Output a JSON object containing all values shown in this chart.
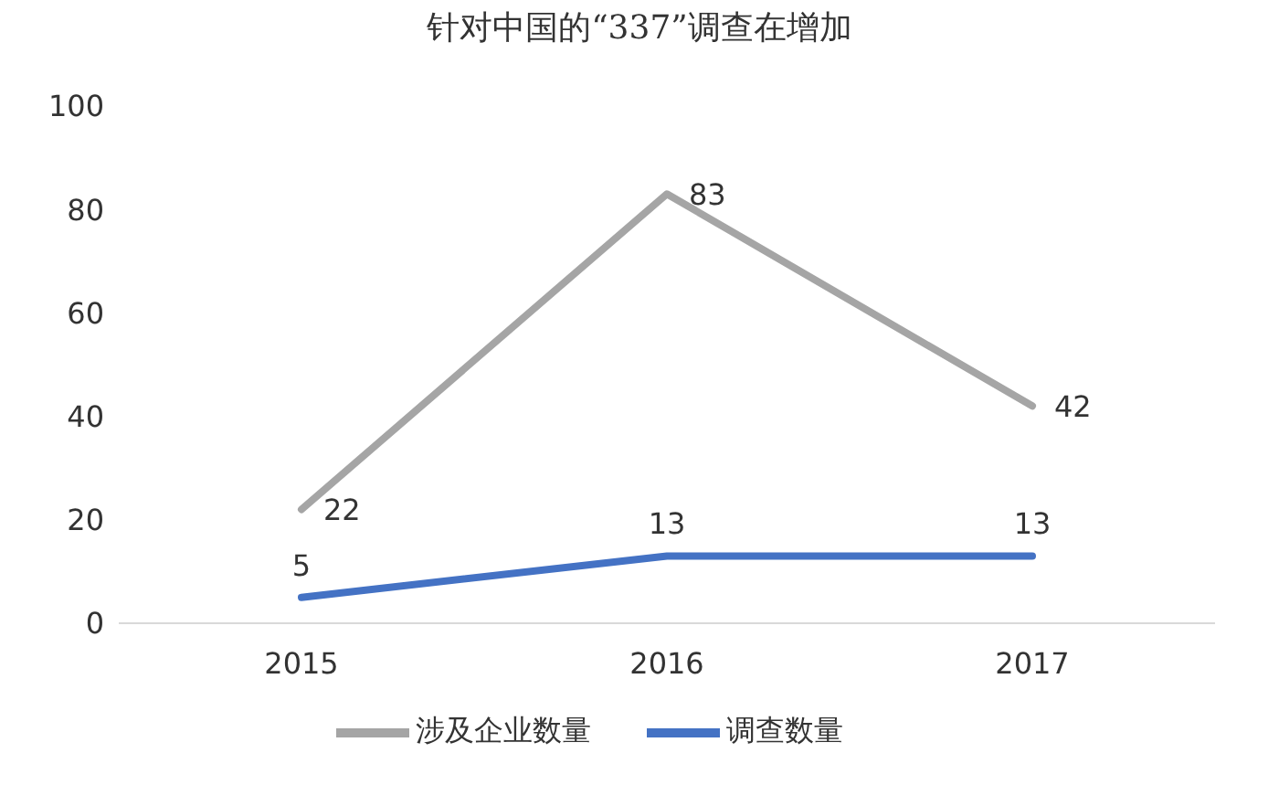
{
  "chart_data": {
    "type": "line",
    "title": "针对中国的“337”调查在增加",
    "categories": [
      "2015",
      "2016",
      "2017"
    ],
    "series": [
      {
        "name": "调查数量",
        "color": "#4472c4",
        "values": [
          5,
          13,
          13
        ]
      },
      {
        "name": "涉及企业数量",
        "color": "#a5a5a5",
        "values": [
          22,
          83,
          42
        ]
      }
    ],
    "ylim": [
      0,
      100
    ],
    "yticks": [
      0,
      20,
      40,
      60,
      80,
      100
    ],
    "grid": false,
    "legend": "bottom",
    "marker": "none",
    "line_style": "solid",
    "data_labels": true
  }
}
